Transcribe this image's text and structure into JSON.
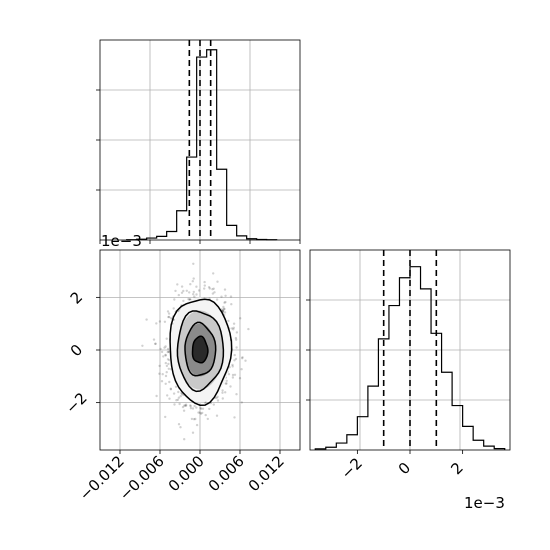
{
  "figure": {
    "exponent_top_left": "1e−3",
    "exponent_bottom_right": "1e−3"
  },
  "chart_data": [
    {
      "type": "bar",
      "panel": "top-left-histogram",
      "xlim": [
        -0.015,
        0.015
      ],
      "grid": true,
      "bin_edges": [
        -0.011,
        -0.0095,
        -0.008,
        -0.0065,
        -0.005,
        -0.0035,
        -0.002,
        -0.0005,
        0.001,
        0.0025,
        0.004,
        0.0055,
        0.007,
        0.0085,
        0.01,
        0.0115
      ],
      "counts": [
        1,
        3,
        8,
        15,
        35,
        120,
        340,
        750,
        780,
        290,
        60,
        17,
        5,
        2,
        1
      ],
      "ylim": [
        0,
        820
      ],
      "quantiles": [
        -0.0016,
        0.0,
        0.0016
      ]
    },
    {
      "type": "scatter",
      "panel": "bottom-left-2d",
      "xlim": [
        -0.015,
        0.015
      ],
      "ylim": [
        -0.0038,
        0.0038
      ],
      "grid": true,
      "x_ticks": [
        -0.012,
        -0.006,
        0.0,
        0.006,
        0.012
      ],
      "x_tick_labels": [
        "−0.012",
        "−0.006",
        "0.000",
        "0.006",
        "0.012"
      ],
      "y_ticks": [
        -0.002,
        0.0,
        0.002
      ],
      "y_tick_labels": [
        "−2",
        "0",
        "2"
      ],
      "center": [
        0.0,
        0.0
      ],
      "std": [
        0.0023,
        0.001
      ],
      "contour_levels_sigma": [
        0.5,
        1.0,
        1.5,
        2.0
      ]
    },
    {
      "type": "bar",
      "panel": "bottom-right-histogram",
      "xlim": [
        -0.0038,
        0.0038
      ],
      "grid": true,
      "x_ticks": [
        -0.002,
        0.0,
        0.002
      ],
      "x_tick_labels": [
        "−2",
        "0",
        "2"
      ],
      "bin_edges": [
        -0.0036,
        -0.0032,
        -0.0028,
        -0.0024,
        -0.002,
        -0.0016,
        -0.0012,
        -0.0008,
        -0.0004,
        0.0,
        0.0004,
        0.0008,
        0.0012,
        0.0016,
        0.002,
        0.0024,
        0.0028,
        0.0032,
        0.0036
      ],
      "counts": [
        4,
        10,
        25,
        55,
        120,
        230,
        400,
        520,
        620,
        660,
        580,
        420,
        280,
        160,
        85,
        35,
        14,
        5
      ],
      "ylim": [
        0,
        720
      ],
      "quantiles": [
        -0.001,
        0.0,
        0.001
      ]
    }
  ]
}
